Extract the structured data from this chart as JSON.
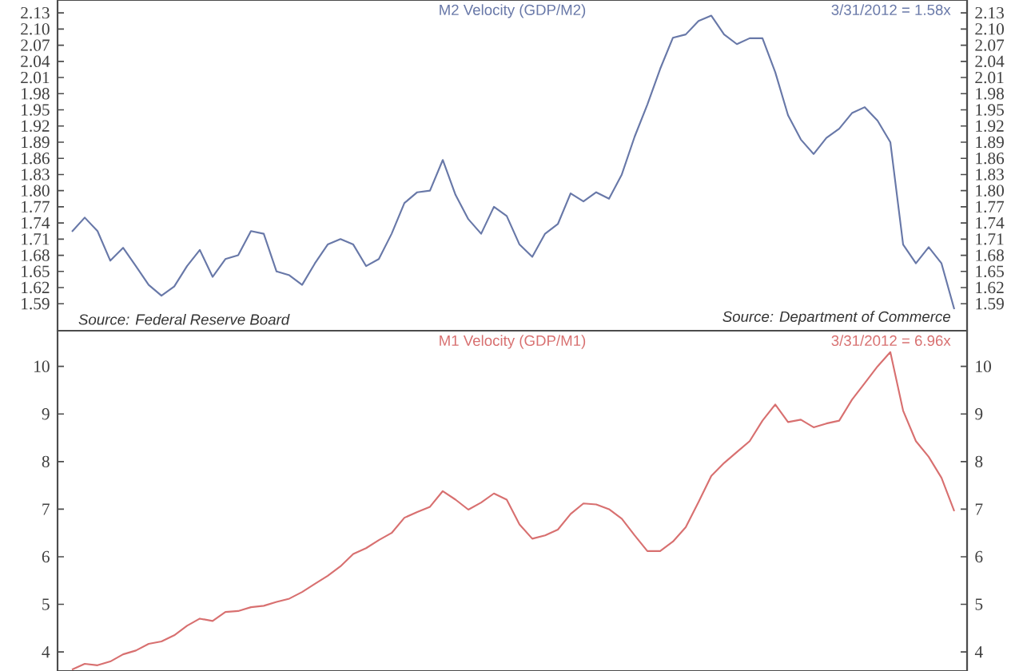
{
  "chart_data": [
    {
      "type": "line",
      "title": "M2 Velocity (GDP/M2)",
      "annotations": [
        "3/31/2012 = 1.58x",
        "Source: Federal Reserve Board",
        "Source: Department of Commerce"
      ],
      "categories": [
        null,
        null,
        null,
        null,
        null,
        null,
        null,
        null,
        null,
        null,
        null,
        null,
        null,
        null,
        null,
        null,
        null,
        null,
        null,
        null,
        null,
        null,
        null,
        null,
        null,
        null,
        null,
        null,
        null,
        null,
        null,
        null,
        null,
        null,
        null,
        null,
        null,
        null,
        null,
        null,
        null,
        null,
        null,
        null,
        null,
        null,
        null,
        null,
        null,
        null,
        null,
        null,
        null,
        null,
        null,
        null,
        null,
        null,
        null,
        null,
        null,
        null,
        null,
        null,
        null,
        null,
        null,
        null,
        null,
        null
      ],
      "series": [
        {
          "color": "#6878a8",
          "values": [
            1.724,
            1.75,
            1.725,
            1.67,
            1.694,
            1.66,
            1.625,
            1.605,
            1.622,
            1.66,
            1.69,
            1.64,
            1.673,
            1.68,
            1.725,
            1.72,
            1.65,
            1.643,
            1.625,
            1.665,
            1.7,
            1.71,
            1.7,
            1.66,
            1.673,
            1.72,
            1.777,
            1.797,
            1.8,
            1.857,
            1.792,
            1.747,
            1.72,
            1.77,
            1.753,
            1.7,
            1.677,
            1.72,
            1.738,
            1.795,
            1.78,
            1.797,
            1.785,
            1.83,
            1.9,
            1.96,
            2.026,
            2.084,
            2.09,
            2.115,
            2.125,
            2.09,
            2.072,
            2.083,
            2.083,
            2.02,
            1.94,
            1.895,
            1.868,
            1.898,
            1.915,
            1.944,
            1.955,
            1.93,
            1.89,
            1.7,
            1.665,
            1.695,
            1.665,
            1.58
          ]
        }
      ],
      "ylim": [
        1.54,
        2.154
      ],
      "yticks": [
        1.59,
        1.62,
        1.65,
        1.68,
        1.71,
        1.74,
        1.77,
        {
          "value": 1.8,
          "label": "1.80"
        },
        1.83,
        1.86,
        1.89,
        1.92,
        1.95,
        1.98,
        2.01,
        2.04,
        2.07,
        {
          "value": 2.1,
          "label": "2.10"
        },
        2.13
      ],
      "y2lim": [
        1.54,
        2.154
      ],
      "y2ticks": [
        1.59,
        1.62,
        1.65,
        1.68,
        1.71,
        1.74,
        1.77,
        {
          "value": 1.8,
          "label": "1.80"
        },
        1.83,
        1.86,
        1.89,
        1.92,
        1.95,
        1.98,
        2.01,
        2.04,
        2.07,
        {
          "value": 2.1,
          "label": "2.10"
        },
        2.13
      ],
      "tick_labels": "y",
      "grid": false,
      "marker": "none",
      "line_style": "solid"
    },
    {
      "type": "line",
      "title": "M1 Velocity (GDP/M1)",
      "annotations": [
        "3/31/2012 = 6.96x"
      ],
      "categories": [
        null,
        null,
        null,
        null,
        null,
        null,
        null,
        null,
        null,
        null,
        null,
        null,
        null,
        null,
        null,
        null,
        null,
        null,
        null,
        null,
        null,
        null,
        null,
        null,
        null,
        null,
        null,
        null,
        null,
        null,
        null,
        null,
        null,
        null,
        null,
        null,
        null,
        null,
        null,
        null,
        null,
        null,
        null,
        null,
        null,
        null,
        null,
        null,
        null,
        null,
        null,
        null,
        null,
        null,
        null,
        null,
        null,
        null,
        null,
        null,
        null,
        null,
        null,
        null,
        null,
        null,
        null,
        null,
        null,
        null
      ],
      "series": [
        {
          "color": "#d87070",
          "values": [
            3.63,
            3.75,
            3.72,
            3.8,
            3.95,
            4.03,
            4.17,
            4.22,
            4.35,
            4.55,
            4.7,
            4.65,
            4.84,
            4.86,
            4.94,
            4.97,
            5.05,
            5.12,
            5.26,
            5.43,
            5.6,
            5.8,
            6.06,
            6.18,
            6.35,
            6.5,
            6.82,
            6.94,
            7.05,
            7.38,
            7.2,
            6.99,
            7.14,
            7.33,
            7.2,
            6.68,
            6.38,
            6.45,
            6.57,
            6.9,
            7.12,
            7.1,
            7.0,
            6.8,
            6.45,
            6.12,
            6.12,
            6.32,
            6.62,
            7.15,
            7.7,
            7.97,
            8.2,
            8.43,
            8.86,
            9.2,
            8.83,
            8.88,
            8.72,
            8.8,
            8.86,
            9.3,
            9.65,
            10.0,
            10.3,
            9.07,
            8.43,
            8.1,
            7.66,
            6.96
          ]
        }
      ],
      "ylim": [
        3.6,
        10.75
      ],
      "yticks": [
        4,
        5,
        6,
        7,
        8,
        9,
        10
      ],
      "y2lim": [
        3.6,
        10.75
      ],
      "y2ticks": [
        4,
        5,
        6,
        7,
        8,
        9,
        10
      ],
      "tick_labels": "y",
      "grid": false,
      "marker": "none",
      "line_style": "solid"
    }
  ]
}
